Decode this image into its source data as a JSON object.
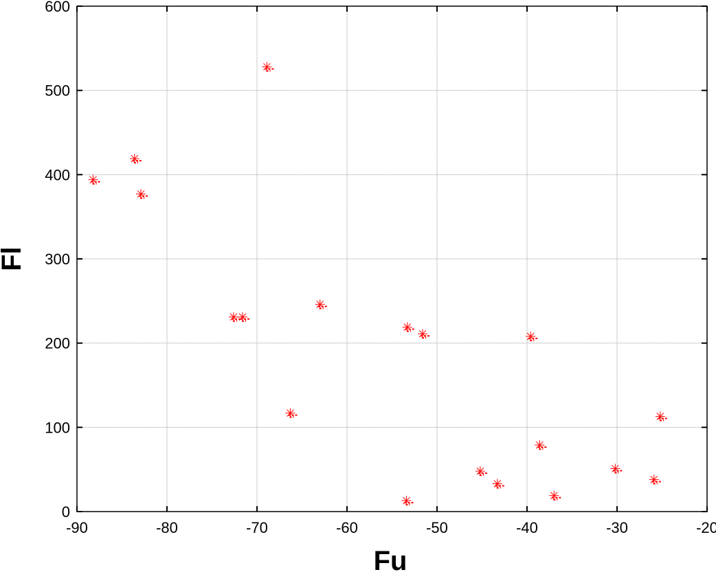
{
  "chart_data": {
    "type": "scatter",
    "title": "",
    "xlabel": "Fu",
    "ylabel": "Fl",
    "xlim": [
      -90,
      -20
    ],
    "ylim": [
      0,
      600
    ],
    "xticks": [
      -90,
      -80,
      -70,
      -60,
      -50,
      -40,
      -30,
      -20
    ],
    "yticks": [
      0,
      100,
      200,
      300,
      400,
      500,
      600
    ],
    "xtick_labels": [
      "-90",
      "-80",
      "-70",
      "-60",
      "-50",
      "-40",
      "-30",
      "-20"
    ],
    "ytick_labels": [
      "0",
      "100",
      "200",
      "300",
      "400",
      "500",
      "600"
    ],
    "grid": true,
    "marker": "asterisk",
    "marker_color": "#ff0000",
    "points": [
      {
        "x": -88.2,
        "y": 394
      },
      {
        "x": -83.6,
        "y": 419
      },
      {
        "x": -82.9,
        "y": 377
      },
      {
        "x": -72.6,
        "y": 231
      },
      {
        "x": -71.6,
        "y": 231
      },
      {
        "x": -68.9,
        "y": 528
      },
      {
        "x": -66.3,
        "y": 117
      },
      {
        "x": -63.0,
        "y": 246
      },
      {
        "x": -53.3,
        "y": 219
      },
      {
        "x": -53.4,
        "y": 13
      },
      {
        "x": -51.6,
        "y": 211
      },
      {
        "x": -45.2,
        "y": 48
      },
      {
        "x": -43.3,
        "y": 33
      },
      {
        "x": -39.6,
        "y": 208
      },
      {
        "x": -38.6,
        "y": 79
      },
      {
        "x": -37.0,
        "y": 19
      },
      {
        "x": -30.2,
        "y": 51
      },
      {
        "x": -25.9,
        "y": 38
      },
      {
        "x": -25.2,
        "y": 113
      }
    ]
  }
}
